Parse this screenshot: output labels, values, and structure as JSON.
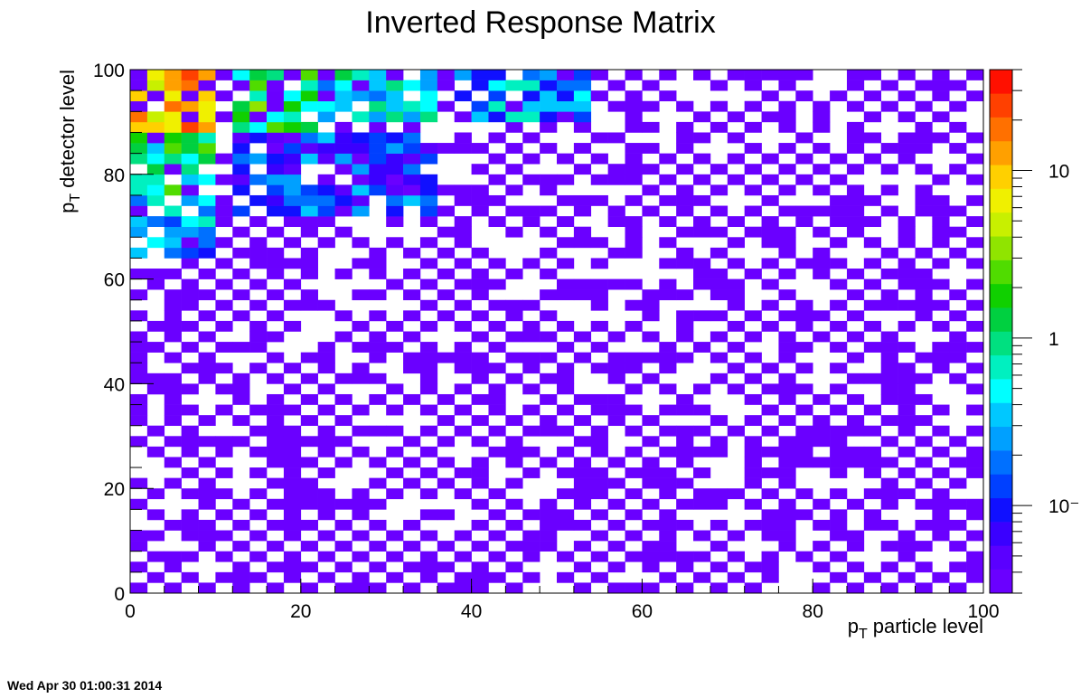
{
  "chart_data": {
    "type": "heatmap",
    "title": "Inverted Response Matrix",
    "xlabel": {
      "symbol": "p",
      "subscript": "T",
      "text": "particle level"
    },
    "ylabel": {
      "symbol": "p",
      "subscript": "T",
      "text": "detector level"
    },
    "xlim": [
      0,
      100
    ],
    "ylim": [
      0,
      100
    ],
    "x_ticks": [
      "0",
      "20",
      "40",
      "60",
      "80",
      "100"
    ],
    "y_ticks": [
      "0",
      "20",
      "40",
      "60",
      "80",
      "100"
    ],
    "bins_x": 50,
    "bins_y": 50,
    "z_scale": "log",
    "z_range": [
      0.03,
      40
    ],
    "colorbar_tick_labels": [
      "10",
      "1",
      "10⁻"
    ],
    "colorbar_tick_values": [
      10,
      1,
      0.1
    ],
    "grid": false,
    "hot_regions": [
      {
        "x_range": [
          0,
          10
        ],
        "y_range": [
          88,
          100
        ],
        "z": 10
      },
      {
        "x_range": [
          0,
          10
        ],
        "y_range": [
          76,
          88
        ],
        "z": 1
      },
      {
        "x_range": [
          0,
          10
        ],
        "y_range": [
          64,
          76
        ],
        "z": 0.3
      },
      {
        "x_range": [
          12,
          22
        ],
        "y_range": [
          88,
          100
        ],
        "z": 1.2
      },
      {
        "x_range": [
          22,
          36
        ],
        "y_range": [
          90,
          100
        ],
        "z": 0.5
      },
      {
        "x_range": [
          38,
          54
        ],
        "y_range": [
          90,
          100
        ],
        "z": 0.25
      },
      {
        "x_range": [
          12,
          36
        ],
        "y_range": [
          72,
          88
        ],
        "z": 0.12
      }
    ],
    "background_level": 0.04
  },
  "timestamp": "Wed Apr 30 01:00:31 2014"
}
